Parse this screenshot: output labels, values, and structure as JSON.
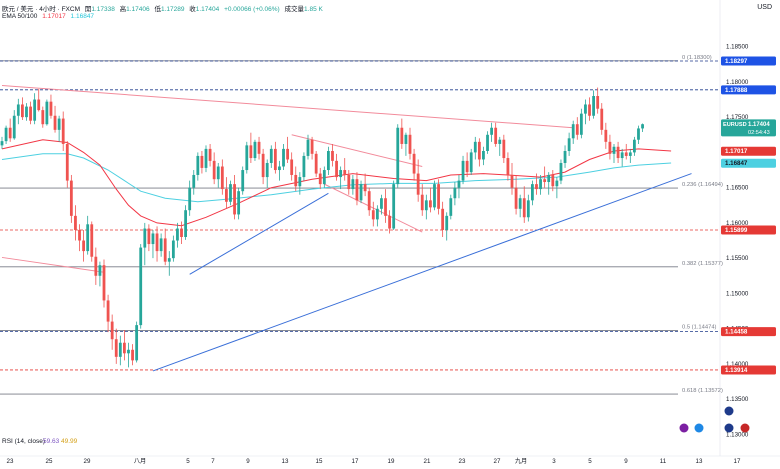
{
  "header": {
    "symbol_line": "欧元 / 美元 · 4小时 · FXCM",
    "open_label": "開",
    "open": "1.17338",
    "high_label": "高",
    "high": "1.17406",
    "low_label": "低",
    "low": "1.17289",
    "close_label": "收",
    "close": "1.17404",
    "change": "+0.00066 (+0.06%)",
    "volume_label": "成交量",
    "volume": "1.85 K",
    "ema_label": "EMA 50/100",
    "ema50": "1.17017",
    "ema100": "1.16847",
    "rsi_label": "RSI (14, close)",
    "rsi1": "59.63",
    "rsi2": "49.99",
    "currency": "USD"
  },
  "colors": {
    "up": "#26a69a",
    "down": "#ef5350",
    "ema50": "#f23645",
    "ema100": "#4dd0e1",
    "trend_blue": "#3a6fd8",
    "trend_red": "#f28b9b",
    "fib_gray": "#787b86",
    "dashed_navy": "#1e3a8a",
    "dashed_red": "#e53935",
    "label_blue": "#1e53e5",
    "label_red": "#e53935"
  },
  "chart_data": {
    "type": "candlestick",
    "symbol": "EURUSD",
    "timeframe": "4小时",
    "ylim": [
      1.1275,
      1.1885
    ],
    "y_ticks": [
      "1.18500",
      "1.18000",
      "1.17500",
      "1.17000",
      "1.16500",
      "1.16000",
      "1.15500",
      "1.15000",
      "1.14500",
      "1.14000",
      "1.13500",
      "1.13000"
    ],
    "x_ticks": [
      "23",
      "25",
      "29",
      "八月",
      "5",
      "7",
      "9",
      "13",
      "15",
      "17",
      "19",
      "21",
      "23",
      "27",
      "九月",
      "3",
      "5",
      "9",
      "11",
      "13",
      "17"
    ],
    "price_labels": [
      {
        "text": "1.18297",
        "value": 1.18297,
        "color": "blue"
      },
      {
        "text": "1.17888",
        "value": 1.17888,
        "color": "blue"
      },
      {
        "text": "1.17017",
        "value": 1.17017,
        "color": "red"
      },
      {
        "text": "1.16847",
        "value": 1.16847,
        "color": "teal"
      },
      {
        "text": "1.15899",
        "value": 1.15899,
        "color": "red"
      },
      {
        "text": "1.14458",
        "value": 1.14458,
        "color": "red"
      },
      {
        "text": "1.13914",
        "value": 1.13914,
        "color": "red"
      }
    ],
    "current": {
      "symbol": "EURUSD",
      "value": "1.17404",
      "countdown": "02:54:43"
    },
    "fib_levels": [
      {
        "label": "0 (1.18300)",
        "value": 1.183
      },
      {
        "label": "0.236 (1.16494)",
        "value": 1.16494
      },
      {
        "label": "0.382 (1.15377)",
        "value": 1.15377
      },
      {
        "label": "0.5 (1.14474)",
        "value": 1.14474
      },
      {
        "label": "0.618 (1.13572)",
        "value": 1.13572
      }
    ],
    "horizontal_lines": [
      {
        "value": 1.18297,
        "style": "dashed",
        "color": "navy"
      },
      {
        "value": 1.17888,
        "style": "dashed",
        "color": "navy"
      },
      {
        "value": 1.15899,
        "style": "dashed",
        "color": "red"
      },
      {
        "value": 1.14458,
        "style": "dashed",
        "color": "navy"
      },
      {
        "value": 1.13914,
        "style": "dashed",
        "color": "red"
      }
    ],
    "trendlines": [
      {
        "color": "red",
        "from": [
          0,
          1.1795
        ],
        "to": [
          140,
          1.1735
        ]
      },
      {
        "color": "red",
        "from": [
          0,
          1.1551
        ],
        "to": [
          25,
          1.153
        ]
      },
      {
        "color": "blue",
        "from": [
          37,
          1.139
        ],
        "to": [
          169,
          1.167
        ]
      },
      {
        "color": "blue",
        "from": [
          46,
          1.1527
        ],
        "to": [
          80,
          1.1642
        ]
      },
      {
        "color": "red",
        "from": [
          71,
          1.1725
        ],
        "to": [
          103,
          1.168
        ]
      },
      {
        "color": "red",
        "from": [
          79,
          1.1655
        ],
        "to": [
          103,
          1.1587
        ]
      }
    ],
    "candles": [
      [
        1.171,
        1.1722,
        1.1705,
        1.1716
      ],
      [
        1.1716,
        1.1738,
        1.1712,
        1.1735
      ],
      [
        1.1735,
        1.1748,
        1.1715,
        1.172
      ],
      [
        1.172,
        1.176,
        1.1718,
        1.1752
      ],
      [
        1.1752,
        1.1776,
        1.174,
        1.1768
      ],
      [
        1.1768,
        1.1778,
        1.1746,
        1.175
      ],
      [
        1.175,
        1.177,
        1.1745,
        1.1765
      ],
      [
        1.1765,
        1.1772,
        1.174,
        1.1745
      ],
      [
        1.1745,
        1.1784,
        1.174,
        1.1775
      ],
      [
        1.1775,
        1.179,
        1.1758,
        1.176
      ],
      [
        1.176,
        1.1765,
        1.1735,
        1.174
      ],
      [
        1.174,
        1.1775,
        1.1738,
        1.1772
      ],
      [
        1.1772,
        1.1782,
        1.1748,
        1.1752
      ],
      [
        1.1752,
        1.1766,
        1.1728,
        1.1732
      ],
      [
        1.1732,
        1.1752,
        1.1715,
        1.1748
      ],
      [
        1.1748,
        1.1758,
        1.1702,
        1.1712
      ],
      [
        1.1712,
        1.1716,
        1.165,
        1.166
      ],
      [
        1.166,
        1.1668,
        1.16,
        1.161
      ],
      [
        1.161,
        1.1625,
        1.1575,
        1.159
      ],
      [
        1.159,
        1.1598,
        1.156,
        1.1575
      ],
      [
        1.1575,
        1.159,
        1.1545,
        1.156
      ],
      [
        1.156,
        1.161,
        1.1555,
        1.1598
      ],
      [
        1.1598,
        1.1602,
        1.1545,
        1.1552
      ],
      [
        1.1552,
        1.1565,
        1.1512,
        1.1525
      ],
      [
        1.1525,
        1.1545,
        1.151,
        1.154
      ],
      [
        1.154,
        1.1548,
        1.148,
        1.149
      ],
      [
        1.149,
        1.1498,
        1.1445,
        1.146
      ],
      [
        1.146,
        1.147,
        1.142,
        1.1435
      ],
      [
        1.1435,
        1.145,
        1.14,
        1.141
      ],
      [
        1.141,
        1.144,
        1.1398,
        1.143
      ],
      [
        1.143,
        1.1448,
        1.1405,
        1.1415
      ],
      [
        1.1415,
        1.143,
        1.1395,
        1.142
      ],
      [
        1.142,
        1.1428,
        1.1398,
        1.1405
      ],
      [
        1.1405,
        1.146,
        1.1402,
        1.1455
      ],
      [
        1.1455,
        1.157,
        1.145,
        1.1565
      ],
      [
        1.1565,
        1.16,
        1.154,
        1.1592
      ],
      [
        1.1592,
        1.1598,
        1.156,
        1.157
      ],
      [
        1.157,
        1.159,
        1.155,
        1.1585
      ],
      [
        1.1585,
        1.1595,
        1.1545,
        1.156
      ],
      [
        1.156,
        1.1585,
        1.1552,
        1.1578
      ],
      [
        1.1578,
        1.1592,
        1.154,
        1.1545
      ],
      [
        1.1545,
        1.156,
        1.1525,
        1.155
      ],
      [
        1.155,
        1.1582,
        1.1545,
        1.1575
      ],
      [
        1.1575,
        1.16,
        1.1565,
        1.1592
      ],
      [
        1.1592,
        1.1602,
        1.157,
        1.158
      ],
      [
        1.158,
        1.1625,
        1.1576,
        1.1618
      ],
      [
        1.1618,
        1.166,
        1.161,
        1.165
      ],
      [
        1.165,
        1.1675,
        1.164,
        1.1668
      ],
      [
        1.1668,
        1.17,
        1.166,
        1.1695
      ],
      [
        1.1695,
        1.1702,
        1.167,
        1.1678
      ],
      [
        1.1678,
        1.171,
        1.1672,
        1.1705
      ],
      [
        1.1705,
        1.1712,
        1.168,
        1.1688
      ],
      [
        1.1688,
        1.17,
        1.1655,
        1.1662
      ],
      [
        1.1662,
        1.1685,
        1.165,
        1.168
      ],
      [
        1.168,
        1.169,
        1.164,
        1.1648
      ],
      [
        1.1648,
        1.1665,
        1.162,
        1.163
      ],
      [
        1.163,
        1.166,
        1.1625,
        1.1655
      ],
      [
        1.1655,
        1.1668,
        1.1605,
        1.1612
      ],
      [
        1.1612,
        1.165,
        1.1605,
        1.1645
      ],
      [
        1.1645,
        1.168,
        1.164,
        1.1675
      ],
      [
        1.1675,
        1.1715,
        1.167,
        1.171
      ],
      [
        1.171,
        1.1728,
        1.1685,
        1.1692
      ],
      [
        1.1692,
        1.1718,
        1.1688,
        1.1715
      ],
      [
        1.1715,
        1.1722,
        1.169,
        1.1698
      ],
      [
        1.1698,
        1.1705,
        1.1655,
        1.1665
      ],
      [
        1.1665,
        1.169,
        1.165,
        1.1685
      ],
      [
        1.1685,
        1.171,
        1.1678,
        1.1705
      ],
      [
        1.1705,
        1.1715,
        1.167,
        1.1675
      ],
      [
        1.1675,
        1.1688,
        1.166,
        1.168
      ],
      [
        1.168,
        1.1712,
        1.1675,
        1.1705
      ],
      [
        1.1705,
        1.1722,
        1.1685,
        1.169
      ],
      [
        1.169,
        1.17,
        1.166,
        1.1668
      ],
      [
        1.1668,
        1.168,
        1.1645,
        1.1652
      ],
      [
        1.1652,
        1.1672,
        1.164,
        1.1665
      ],
      [
        1.1665,
        1.17,
        1.166,
        1.1695
      ],
      [
        1.1695,
        1.1725,
        1.169,
        1.1718
      ],
      [
        1.1718,
        1.1722,
        1.169,
        1.1698
      ],
      [
        1.1698,
        1.1702,
        1.1665,
        1.167
      ],
      [
        1.167,
        1.1678,
        1.1648,
        1.1655
      ],
      [
        1.1655,
        1.168,
        1.165,
        1.1675
      ],
      [
        1.1675,
        1.1708,
        1.1668,
        1.1702
      ],
      [
        1.1702,
        1.1712,
        1.168,
        1.1688
      ],
      [
        1.1688,
        1.1698,
        1.166,
        1.1665
      ],
      [
        1.1665,
        1.168,
        1.1648,
        1.1675
      ],
      [
        1.1675,
        1.1692,
        1.166,
        1.1668
      ],
      [
        1.1668,
        1.1675,
        1.164,
        1.1648
      ],
      [
        1.1648,
        1.1668,
        1.164,
        1.1662
      ],
      [
        1.1662,
        1.1672,
        1.1625,
        1.1632
      ],
      [
        1.1632,
        1.166,
        1.1628,
        1.1655
      ],
      [
        1.1655,
        1.167,
        1.1638,
        1.1645
      ],
      [
        1.1645,
        1.165,
        1.161,
        1.1618
      ],
      [
        1.1618,
        1.163,
        1.1595,
        1.1605
      ],
      [
        1.1605,
        1.1625,
        1.1595,
        1.162
      ],
      [
        1.162,
        1.164,
        1.1612,
        1.1635
      ],
      [
        1.1635,
        1.1648,
        1.16,
        1.161
      ],
      [
        1.161,
        1.1618,
        1.1585,
        1.1592
      ],
      [
        1.1592,
        1.166,
        1.159,
        1.1655
      ],
      [
        1.1655,
        1.174,
        1.165,
        1.1735
      ],
      [
        1.1735,
        1.1748,
        1.1705,
        1.1712
      ],
      [
        1.1712,
        1.1728,
        1.1695,
        1.1725
      ],
      [
        1.1725,
        1.1735,
        1.169,
        1.1698
      ],
      [
        1.1698,
        1.1705,
        1.166,
        1.167
      ],
      [
        1.167,
        1.169,
        1.163,
        1.164
      ],
      [
        1.164,
        1.1655,
        1.161,
        1.1618
      ],
      [
        1.1618,
        1.164,
        1.1605,
        1.1632
      ],
      [
        1.1632,
        1.165,
        1.1615,
        1.1622
      ],
      [
        1.1622,
        1.166,
        1.1618,
        1.1655
      ],
      [
        1.1655,
        1.1662,
        1.1612,
        1.162
      ],
      [
        1.162,
        1.163,
        1.158,
        1.159
      ],
      [
        1.159,
        1.1615,
        1.1575,
        1.161
      ],
      [
        1.161,
        1.164,
        1.1605,
        1.1635
      ],
      [
        1.1635,
        1.1658,
        1.1625,
        1.165
      ],
      [
        1.165,
        1.1668,
        1.1635,
        1.166
      ],
      [
        1.166,
        1.1695,
        1.1655,
        1.1688
      ],
      [
        1.1688,
        1.17,
        1.1665,
        1.1672
      ],
      [
        1.1672,
        1.1705,
        1.1668,
        1.17
      ],
      [
        1.17,
        1.1722,
        1.169,
        1.1715
      ],
      [
        1.1715,
        1.172,
        1.168,
        1.169
      ],
      [
        1.169,
        1.1708,
        1.1682,
        1.1702
      ],
      [
        1.1702,
        1.173,
        1.1698,
        1.1725
      ],
      [
        1.1725,
        1.1742,
        1.1715,
        1.1735
      ],
      [
        1.1735,
        1.1742,
        1.1708,
        1.1712
      ],
      [
        1.1712,
        1.1722,
        1.1695,
        1.1718
      ],
      [
        1.1718,
        1.1725,
        1.1685,
        1.1692
      ],
      [
        1.1692,
        1.17,
        1.166,
        1.1668
      ],
      [
        1.1668,
        1.1685,
        1.164,
        1.165
      ],
      [
        1.165,
        1.1668,
        1.1612,
        1.162
      ],
      [
        1.162,
        1.164,
        1.1608,
        1.1635
      ],
      [
        1.1635,
        1.1652,
        1.16,
        1.1608
      ],
      [
        1.1608,
        1.164,
        1.1602,
        1.1632
      ],
      [
        1.1632,
        1.166,
        1.1625,
        1.1655
      ],
      [
        1.1655,
        1.167,
        1.164,
        1.1648
      ],
      [
        1.1648,
        1.1668,
        1.164,
        1.1662
      ],
      [
        1.1662,
        1.168,
        1.165,
        1.1658
      ],
      [
        1.1658,
        1.1672,
        1.164,
        1.1668
      ],
      [
        1.1668,
        1.1675,
        1.1645,
        1.1652
      ],
      [
        1.1652,
        1.1665,
        1.1635,
        1.166
      ],
      [
        1.166,
        1.169,
        1.1655,
        1.1685
      ],
      [
        1.1685,
        1.171,
        1.1678,
        1.1702
      ],
      [
        1.1702,
        1.1728,
        1.1695,
        1.172
      ],
      [
        1.172,
        1.1745,
        1.1712,
        1.174
      ],
      [
        1.174,
        1.175,
        1.1718,
        1.1725
      ],
      [
        1.1725,
        1.1762,
        1.172,
        1.1755
      ],
      [
        1.1755,
        1.1775,
        1.174,
        1.1768
      ],
      [
        1.1768,
        1.1778,
        1.1745,
        1.1752
      ],
      [
        1.1752,
        1.1788,
        1.1748,
        1.178
      ],
      [
        1.178,
        1.1792,
        1.1755,
        1.1762
      ],
      [
        1.1762,
        1.177,
        1.1725,
        1.1732
      ],
      [
        1.1732,
        1.1742,
        1.1705,
        1.1715
      ],
      [
        1.1715,
        1.1725,
        1.169,
        1.1698
      ],
      [
        1.1698,
        1.1712,
        1.1685,
        1.1708
      ],
      [
        1.1708,
        1.1715,
        1.1685,
        1.1692
      ],
      [
        1.1692,
        1.1705,
        1.168,
        1.17
      ],
      [
        1.17,
        1.1712,
        1.169,
        1.1695
      ],
      [
        1.1695,
        1.1705,
        1.1685,
        1.17
      ],
      [
        1.17,
        1.1722,
        1.1695,
        1.1718
      ],
      [
        1.1718,
        1.1738,
        1.1712,
        1.1734
      ],
      [
        1.1734,
        1.1741,
        1.1729,
        1.174
      ]
    ],
    "ema50": [
      [
        0,
        1.1705
      ],
      [
        10,
        1.1718
      ],
      [
        16,
        1.1714
      ],
      [
        20,
        1.17
      ],
      [
        24,
        1.1682
      ],
      [
        28,
        1.1648
      ],
      [
        31,
        1.1625
      ],
      [
        34,
        1.161
      ],
      [
        38,
        1.16
      ],
      [
        44,
        1.1596
      ],
      [
        50,
        1.1608
      ],
      [
        58,
        1.1628
      ],
      [
        66,
        1.165
      ],
      [
        76,
        1.1662
      ],
      [
        86,
        1.167
      ],
      [
        96,
        1.1663
      ],
      [
        104,
        1.166
      ],
      [
        110,
        1.1668
      ],
      [
        118,
        1.167
      ],
      [
        124,
        1.1668
      ],
      [
        132,
        1.1665
      ],
      [
        138,
        1.1672
      ],
      [
        144,
        1.169
      ],
      [
        150,
        1.1702
      ],
      [
        156,
        1.1705
      ],
      [
        164,
        1.1702
      ]
    ],
    "ema100": [
      [
        0,
        1.169
      ],
      [
        10,
        1.1698
      ],
      [
        16,
        1.1698
      ],
      [
        20,
        1.1692
      ],
      [
        26,
        1.1675
      ],
      [
        30,
        1.166
      ],
      [
        34,
        1.1645
      ],
      [
        40,
        1.1635
      ],
      [
        48,
        1.163
      ],
      [
        56,
        1.1634
      ],
      [
        66,
        1.164
      ],
      [
        76,
        1.1648
      ],
      [
        86,
        1.1654
      ],
      [
        96,
        1.1656
      ],
      [
        106,
        1.1656
      ],
      [
        116,
        1.166
      ],
      [
        126,
        1.1662
      ],
      [
        136,
        1.1665
      ],
      [
        144,
        1.1672
      ],
      [
        150,
        1.1678
      ],
      [
        156,
        1.1682
      ],
      [
        164,
        1.1685
      ]
    ]
  }
}
